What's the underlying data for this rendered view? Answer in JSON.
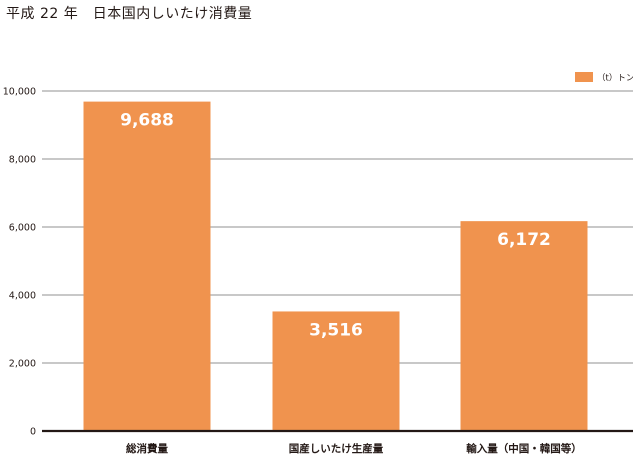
{
  "page": {
    "title": "平成 22 年　日本国内しいたけ消費量"
  },
  "colors": {
    "bar": "#f0934e",
    "axis": "#231815",
    "grid": "#6d6d6d"
  },
  "chart_data": {
    "type": "bar",
    "title": "",
    "xlabel": "",
    "ylabel": "",
    "ylim": [
      0,
      10000
    ],
    "yticks": [
      0,
      2000,
      4000,
      6000,
      8000,
      10000
    ],
    "ytick_labels": [
      "0",
      "2,000",
      "4,000",
      "6,000",
      "8,000",
      "10,000"
    ],
    "categories": [
      "総消費量",
      "国産しいたけ生産量",
      "輸入量（中国・韓国等）"
    ],
    "values": [
      9688,
      3516,
      6172
    ],
    "value_labels": [
      "9,688",
      "3,516",
      "6,172"
    ],
    "legend": {
      "position": "top-right",
      "entries": [
        "（t）トン"
      ]
    },
    "grid": true
  }
}
